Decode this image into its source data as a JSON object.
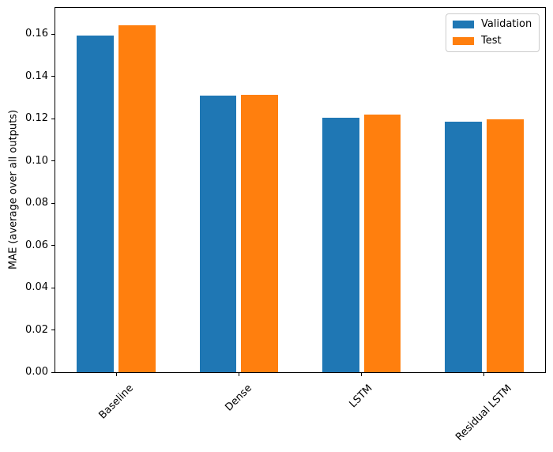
{
  "chart_data": {
    "type": "bar",
    "title": "",
    "xlabel": "",
    "ylabel": "MAE (average over all outputs)",
    "categories": [
      "Baseline",
      "Dense",
      "LSTM",
      "Residual LSTM"
    ],
    "series": [
      {
        "name": "Validation",
        "color": "#1f77b4",
        "values": [
          0.1593,
          0.1311,
          0.1205,
          0.1186
        ]
      },
      {
        "name": "Test",
        "color": "#ff7f0e",
        "values": [
          0.1642,
          0.1313,
          0.1219,
          0.1197
        ]
      }
    ],
    "ylim": [
      0,
      0.1727
    ],
    "yticks": [
      0.0,
      0.02,
      0.04,
      0.06,
      0.08,
      0.1,
      0.12,
      0.14,
      0.16
    ],
    "ytick_labels": [
      "0.00",
      "0.02",
      "0.04",
      "0.06",
      "0.08",
      "0.10",
      "0.12",
      "0.14",
      "0.16"
    ],
    "xtick_rotation_deg": 45,
    "bar_width": 0.3,
    "bar_offset": 0.17,
    "grid": false,
    "legend": {
      "location": "upper right",
      "entries": [
        "Validation",
        "Test"
      ]
    }
  }
}
